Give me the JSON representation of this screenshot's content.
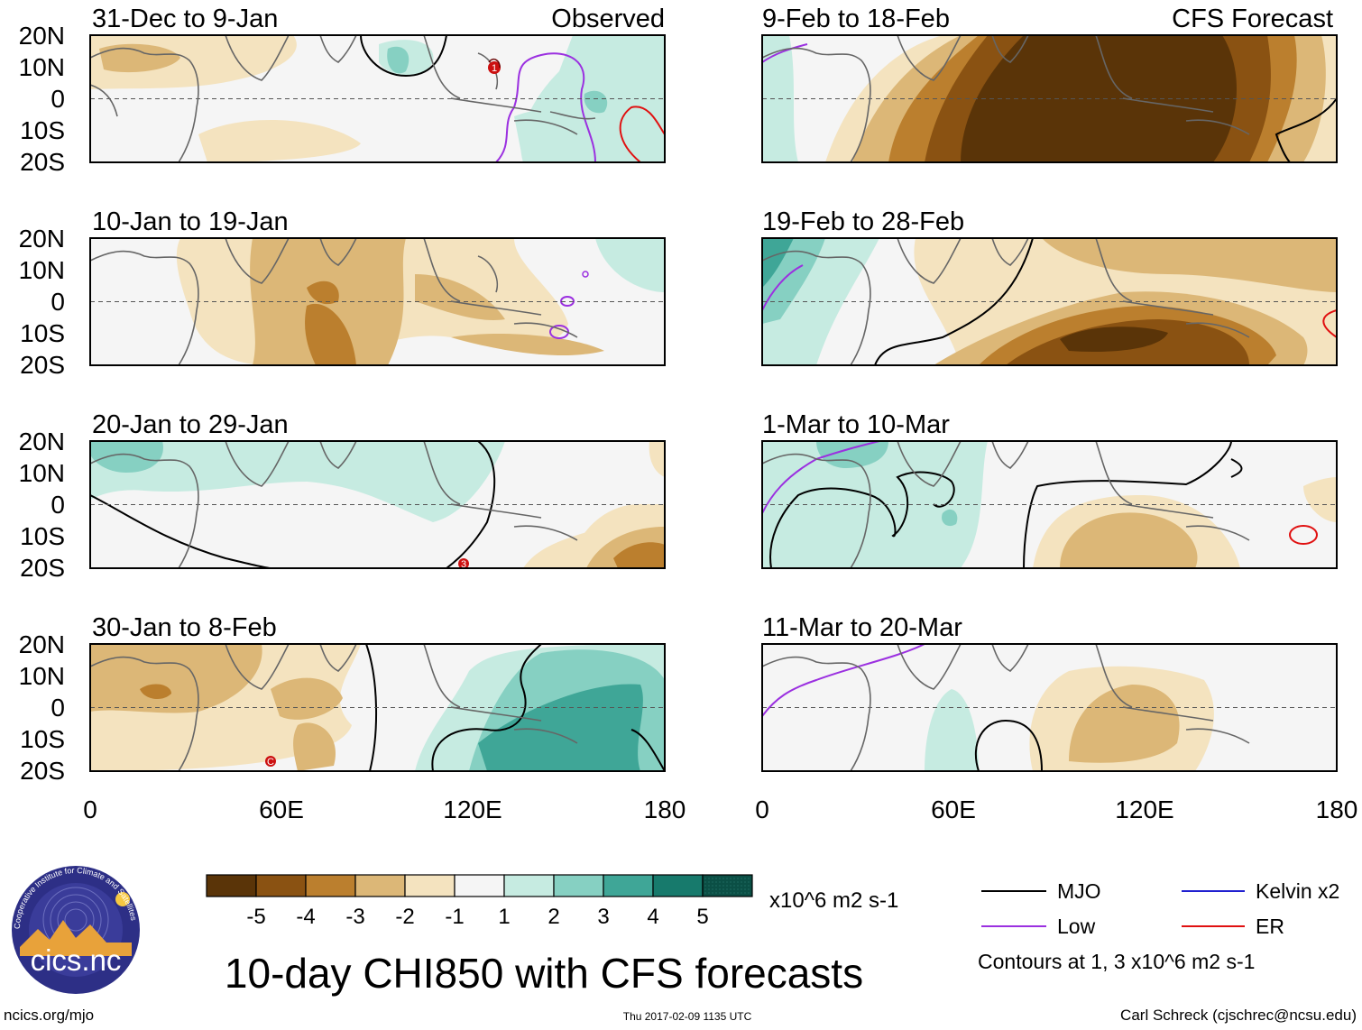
{
  "title": "10-day CHI850 with CFS forecasts",
  "observed_label": "Observed",
  "forecast_label": "CFS Forecast",
  "panels_left": [
    {
      "period": "31-Dec to 9-Jan"
    },
    {
      "period": "10-Jan to 19-Jan"
    },
    {
      "period": "20-Jan to 29-Jan"
    },
    {
      "period": "30-Jan to 8-Feb"
    }
  ],
  "panels_right": [
    {
      "period": "9-Feb to 18-Feb"
    },
    {
      "period": "19-Feb to 28-Feb"
    },
    {
      "period": "1-Mar to 10-Mar"
    },
    {
      "period": "11-Mar to 20-Mar"
    }
  ],
  "lat_labels": [
    "20N",
    "10N",
    "0",
    "10S",
    "20S"
  ],
  "lon_labels": [
    "0",
    "60E",
    "120E",
    "180"
  ],
  "colorbar": {
    "ticks": [
      "-5",
      "-4",
      "-3",
      "-2",
      "-1",
      "1",
      "2",
      "3",
      "4",
      "5"
    ],
    "units": "x10^6 m2 s-1",
    "colors": [
      "#5a3408",
      "#8a5212",
      "#bb7f2e",
      "#dcb777",
      "#f4e3bf",
      "#f5f5f5",
      "#c6ebe1",
      "#86d0c2",
      "#3fa697",
      "#177a6c",
      "#0b4f45"
    ]
  },
  "legend": {
    "mjo": "MJO",
    "low": "Low",
    "kelvin": "Kelvin x2",
    "er": "ER",
    "contours_note": "Contours at 1, 3 x10^6 m2 s-1",
    "colors": {
      "mjo": "#000000",
      "low": "#9b30e0",
      "kelvin": "#2020d0",
      "er": "#e01010"
    }
  },
  "logo_text": "cics.nc",
  "logo_arc_text": "Cooperative Institute for Climate and Satellites",
  "footer": {
    "left": "ncics.org/mjo",
    "center": "Thu 2017-02-09 1135 UTC",
    "right": "Carl Schreck (cjschrec@ncsu.edu)"
  }
}
